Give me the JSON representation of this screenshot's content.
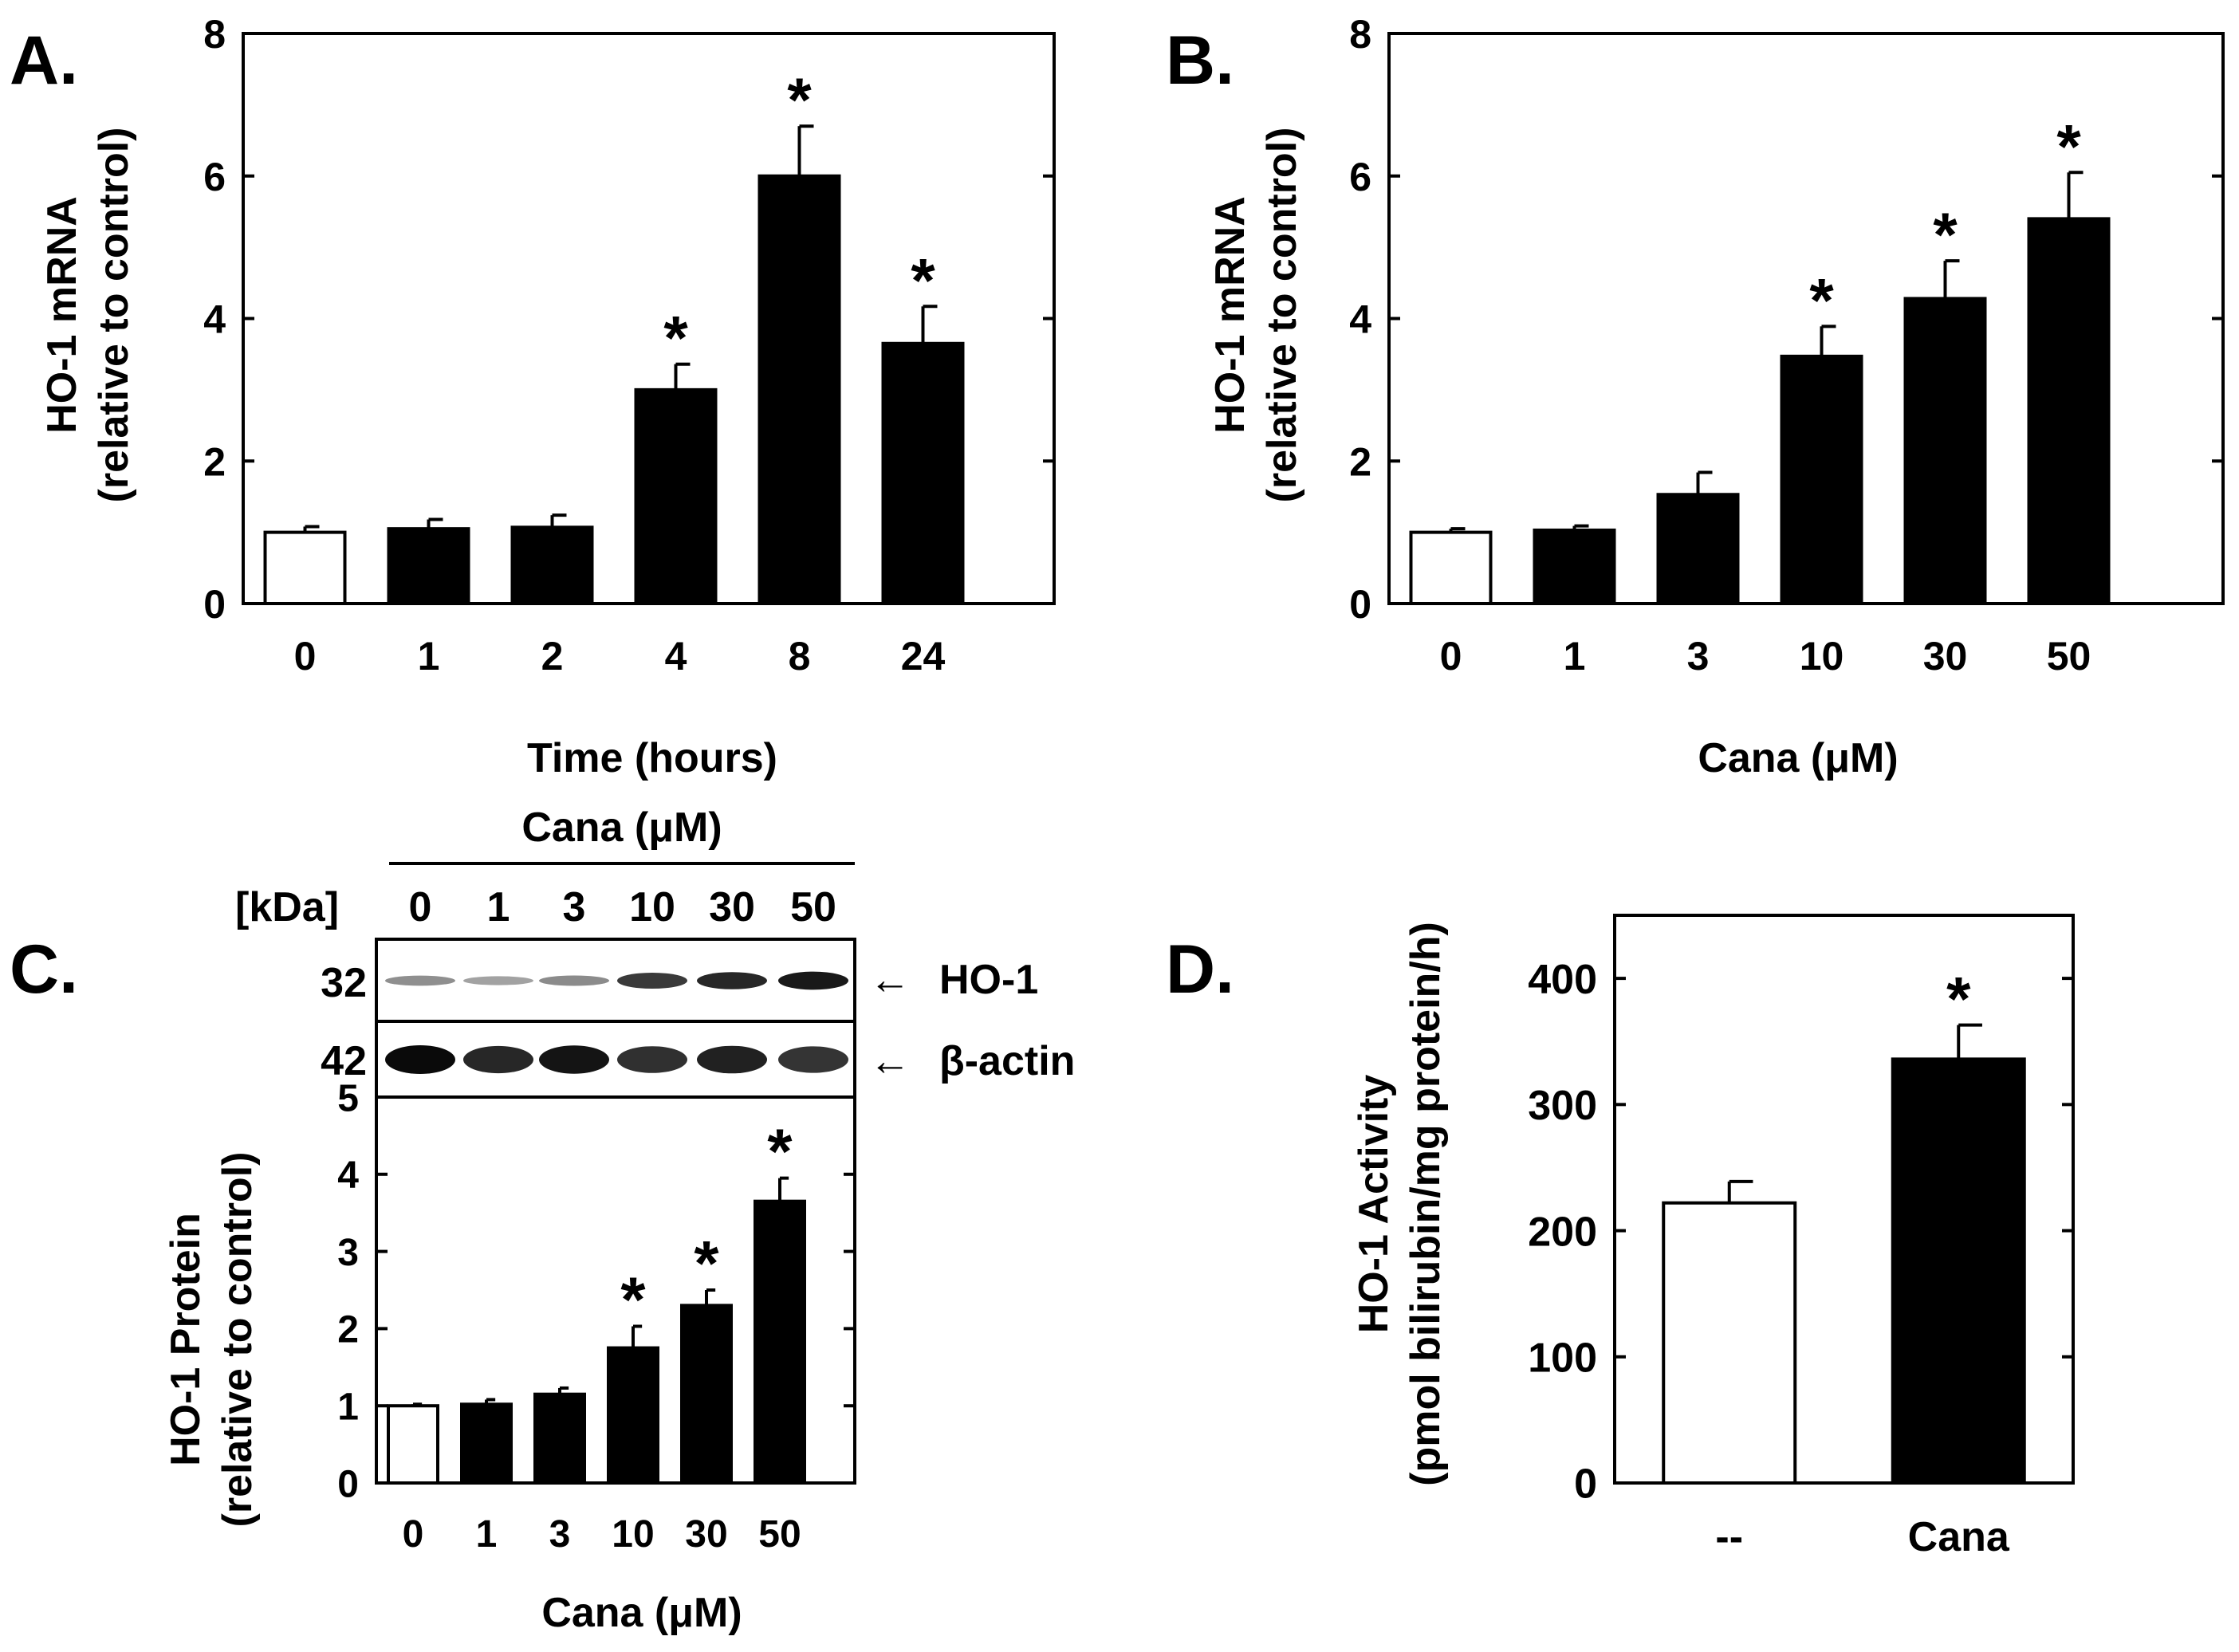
{
  "chart_data": [
    {
      "id": "A",
      "panel_label": "A.",
      "type": "bar",
      "title": "",
      "ylabel_line1": "HO-1 mRNA",
      "ylabel_line2": "(relative to control)",
      "xlabel": "Time (hours)",
      "ylim": [
        0,
        8
      ],
      "yticks": [
        0,
        2,
        4,
        6,
        8
      ],
      "categories": [
        "0",
        "1",
        "2",
        "4",
        "8",
        "24"
      ],
      "values": [
        1.0,
        1.05,
        1.07,
        3.0,
        6.0,
        3.65
      ],
      "errors": [
        0.08,
        0.13,
        0.17,
        0.36,
        0.7,
        0.52
      ],
      "significant": [
        false,
        false,
        false,
        true,
        true,
        true
      ],
      "fills": [
        "#ffffff",
        "#000000",
        "#000000",
        "#000000",
        "#000000",
        "#000000"
      ]
    },
    {
      "id": "B",
      "panel_label": "B.",
      "type": "bar",
      "title": "",
      "ylabel_line1": "HO-1 mRNA",
      "ylabel_line2": "(relative to control)",
      "xlabel": "Cana (μM)",
      "ylim": [
        0,
        8
      ],
      "yticks": [
        0,
        2,
        4,
        6,
        8
      ],
      "categories": [
        "0",
        "1",
        "3",
        "10",
        "30",
        "50"
      ],
      "values": [
        1.0,
        1.03,
        1.53,
        3.47,
        4.28,
        5.4
      ],
      "errors": [
        0.05,
        0.06,
        0.31,
        0.42,
        0.53,
        0.65
      ],
      "significant": [
        false,
        false,
        false,
        true,
        true,
        true
      ],
      "fills": [
        "#ffffff",
        "#000000",
        "#000000",
        "#000000",
        "#000000",
        "#000000"
      ]
    },
    {
      "id": "C",
      "panel_label": "C.",
      "type": "bar",
      "title": "",
      "ylabel_line1": "HO-1 Protein",
      "ylabel_line2": "(relative to control)",
      "xlabel": "Cana (μM)",
      "ylim": [
        0,
        5
      ],
      "yticks": [
        0,
        1,
        2,
        3,
        4,
        5
      ],
      "categories": [
        "0",
        "1",
        "3",
        "10",
        "30",
        "50"
      ],
      "values": [
        1.0,
        1.02,
        1.15,
        1.75,
        2.3,
        3.65
      ],
      "errors": [
        0.02,
        0.06,
        0.08,
        0.28,
        0.2,
        0.3
      ],
      "significant": [
        false,
        false,
        false,
        true,
        true,
        true
      ],
      "fills": [
        "#ffffff",
        "#000000",
        "#000000",
        "#000000",
        "#000000",
        "#000000"
      ]
    },
    {
      "id": "D",
      "panel_label": "D.",
      "type": "bar",
      "title": "",
      "ylabel_line1": "HO-1 Activity",
      "ylabel_line2": "(pmol bilirubin/mg protein/h)",
      "xlabel": "",
      "ylim": [
        0,
        450
      ],
      "yticks": [
        0,
        100,
        200,
        300,
        400
      ],
      "categories": [
        "--",
        "Cana"
      ],
      "values": [
        222,
        336
      ],
      "errors": [
        17,
        27
      ],
      "significant": [
        false,
        true
      ],
      "fills": [
        "#ffffff",
        "#000000"
      ]
    }
  ],
  "significance_marker": "*",
  "blot": {
    "header": "Cana (μM)",
    "kda_label": "[kDa]",
    "lanes": [
      "0",
      "1",
      "3",
      "10",
      "30",
      "50"
    ],
    "rows": [
      {
        "kda": "32",
        "protein": "HO-1",
        "arrow": "←",
        "intensity": [
          0.3,
          0.2,
          0.32,
          0.75,
          0.85,
          0.92
        ]
      },
      {
        "kda": "42",
        "protein": "β-actin",
        "arrow": "←",
        "intensity": [
          1.0,
          0.85,
          0.95,
          0.8,
          0.88,
          0.78
        ]
      }
    ]
  }
}
